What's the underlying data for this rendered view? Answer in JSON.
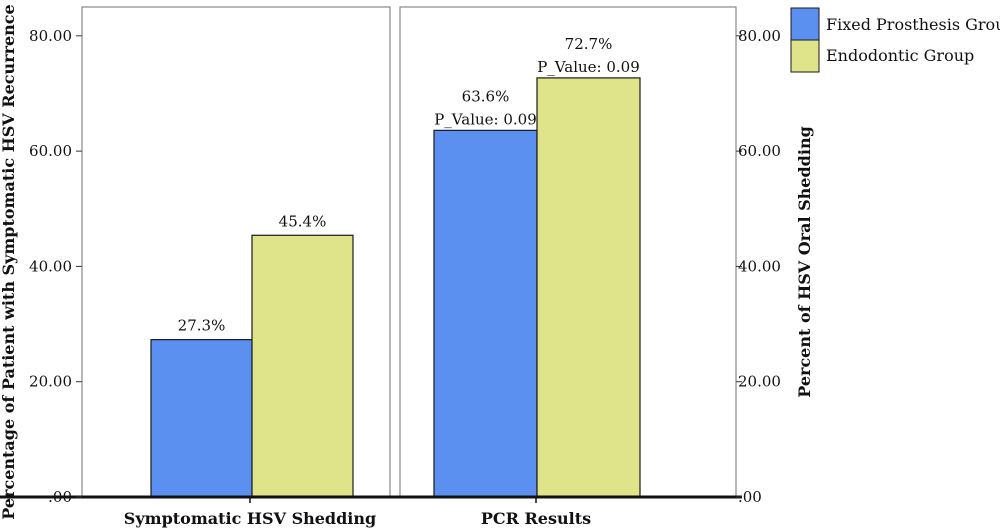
{
  "chart_data": [
    {
      "type": "bar",
      "panel": "left",
      "categories": [
        "Symptomatic HSV Shedding"
      ],
      "series": [
        {
          "name": "Fixed Prosthesis Group",
          "values": [
            27.3
          ],
          "labels": [
            "27.3%"
          ]
        },
        {
          "name": "Endodontic Group",
          "values": [
            45.4
          ],
          "labels": [
            "45.4%"
          ]
        }
      ],
      "ylabel": "Percentage of Patient with Symptomatic HSV Recurrence",
      "ylim": [
        0,
        85
      ],
      "yticks": [
        0,
        20,
        40,
        60,
        80
      ],
      "ytick_labels": [
        ".00",
        "20.00",
        "40.00",
        "60.00",
        "80.00"
      ],
      "grid": false
    },
    {
      "type": "bar",
      "panel": "right",
      "categories": [
        "PCR Results"
      ],
      "series": [
        {
          "name": "Fixed Prosthesis Group",
          "values": [
            63.6
          ],
          "labels": [
            "63.6%"
          ],
          "annotations": [
            "P_Value: 0.09"
          ]
        },
        {
          "name": "Endodontic Group",
          "values": [
            72.7
          ],
          "labels": [
            "72.7%"
          ],
          "annotations": [
            "P_Value: 0.09"
          ]
        }
      ],
      "ylabel": "Percent of HSV Oral Shedding",
      "ylim": [
        0,
        85
      ],
      "yticks": [
        0,
        20,
        40,
        60,
        80
      ],
      "ytick_labels": [
        ".00",
        "20.00",
        "40.00",
        "60.00",
        "80.00"
      ],
      "grid": false
    }
  ],
  "legend": {
    "placement": "top-right",
    "items": [
      {
        "name": "Fixed Prosthesis Group",
        "color": "#5b8ff0"
      },
      {
        "name": "Endodontic Group",
        "color": "#dfe38a"
      }
    ]
  },
  "colors": {
    "series": [
      "#5b8ff0",
      "#dfe38a"
    ],
    "bar_stroke": "#1a1a1a",
    "frame": "#888888"
  }
}
